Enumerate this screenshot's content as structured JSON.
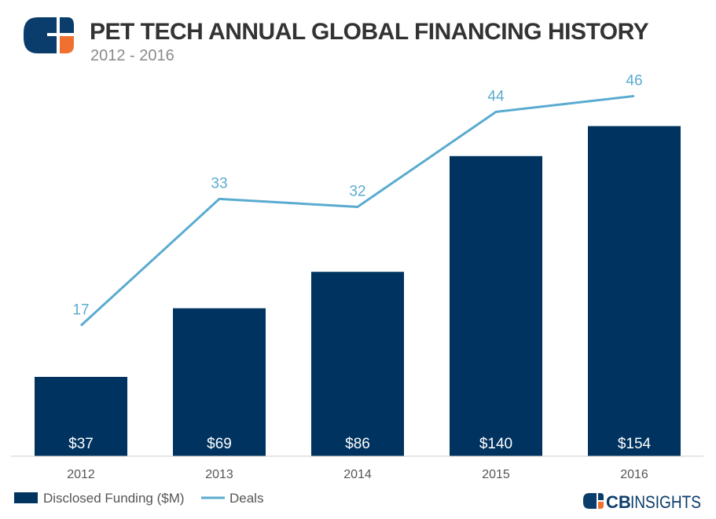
{
  "header": {
    "title": "PET TECH ANNUAL GLOBAL FINANCING HISTORY",
    "subtitle": "2012 - 2016"
  },
  "colors": {
    "bar": "#00335f",
    "line": "#5aabd0",
    "logo_dark": "#0a3d6b",
    "logo_accent": "#f07030",
    "axis": "#cccccc"
  },
  "legend": {
    "bar_label": "Disclosed Funding ($M)",
    "line_label": "Deals"
  },
  "brand": {
    "cb": "CB",
    "insights": "INSIGHTS"
  },
  "chart_data": {
    "type": "bar",
    "title": "PET TECH ANNUAL GLOBAL FINANCING HISTORY",
    "subtitle": "2012 - 2016",
    "xlabel": "",
    "ylabel": "",
    "grid": false,
    "legend_position": "bottom-left",
    "categories": [
      "2012",
      "2013",
      "2014",
      "2015",
      "2016"
    ],
    "ylim": [
      0,
      175
    ],
    "y2lim": [
      0,
      55
    ],
    "series": [
      {
        "name": "Disclosed Funding ($M)",
        "type": "bar",
        "axis": "left",
        "values": [
          37,
          69,
          86,
          140,
          154
        ],
        "labels": [
          "$37",
          "$69",
          "$86",
          "$140",
          "$154"
        ]
      },
      {
        "name": "Deals",
        "type": "line",
        "axis": "right",
        "values": [
          17,
          33,
          32,
          44,
          46
        ],
        "labels": [
          "17",
          "33",
          "32",
          "44",
          "46"
        ]
      }
    ]
  }
}
